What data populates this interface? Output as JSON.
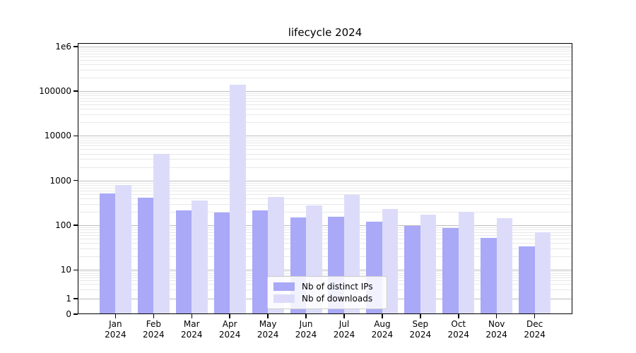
{
  "title": "lifecycle 2024",
  "chart_data": {
    "type": "bar",
    "title": "lifecycle 2024",
    "yscale": "symlog",
    "ylim": [
      0,
      1000000
    ],
    "grid": "horizontal, major and minor gridlines",
    "legend_position": "lower center",
    "categories": [
      "Jan",
      "Feb",
      "Mar",
      "Apr",
      "May",
      "Jun",
      "Jul",
      "Aug",
      "Sep",
      "Oct",
      "Nov",
      "Dec"
    ],
    "category_year": "2024",
    "ytick_labels": [
      "1e6",
      "100000",
      "10000",
      "1000",
      "100",
      "10",
      "1",
      "0"
    ],
    "ytick_values": [
      1000000,
      100000,
      10000,
      1000,
      100,
      10,
      1,
      0
    ],
    "series": [
      {
        "name": "Nb of distinct IPs",
        "color": "#a9a9f7",
        "values": [
          510,
          420,
          215,
          195,
          215,
          150,
          155,
          120,
          95,
          85,
          52,
          34
        ]
      },
      {
        "name": "Nb of downloads",
        "color": "#dcdcfa",
        "values": [
          800,
          3900,
          360,
          140000,
          430,
          280,
          480,
          230,
          175,
          200,
          145,
          70
        ]
      }
    ]
  },
  "legend": {
    "items": [
      {
        "label": "Nb of distinct IPs"
      },
      {
        "label": "Nb of downloads"
      }
    ]
  }
}
